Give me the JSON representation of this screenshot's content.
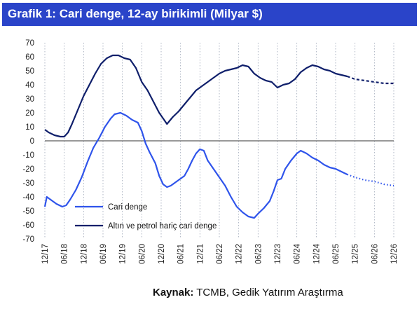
{
  "header": {
    "title": "Grafik 1: Cari denge, 12-ay birikimli (Milyar $)",
    "background": "#2a44c9"
  },
  "source": {
    "label": "Kaynak:",
    "text": " TCMB, Gedik Yatırım Araştırma"
  },
  "chart_data": {
    "type": "line",
    "title": "Grafik 1: Cari denge, 12-ay birikimli (Milyar $)",
    "xlabel": "",
    "ylabel": "",
    "ylim": [
      -70,
      70
    ],
    "yticks": [
      70,
      60,
      50,
      40,
      30,
      20,
      10,
      0,
      -10,
      -20,
      -30,
      -40,
      -50,
      -60,
      -70
    ],
    "xticks": [
      "12/17",
      "06/18",
      "12/18",
      "06/19",
      "12/19",
      "06/20",
      "12/20",
      "06/21",
      "12/21",
      "06/22",
      "12/22",
      "06/23",
      "12/23",
      "06/24",
      "12/24",
      "06/25",
      "12/25",
      "06/26",
      "12/26"
    ],
    "x_unit": "half-year index (0 = 12/17, 1 = 06/18, ... 18 = 12/26)",
    "grid": "vertical dotted",
    "legend": "bottom-center",
    "series": [
      {
        "name": "Cari denge",
        "color": "#2f54eb",
        "actual": [
          [
            0.0,
            -47
          ],
          [
            0.1,
            -40
          ],
          [
            0.3,
            -42
          ],
          [
            0.6,
            -45
          ],
          [
            0.9,
            -47
          ],
          [
            1.1,
            -46
          ],
          [
            1.3,
            -42
          ],
          [
            1.6,
            -35
          ],
          [
            1.9,
            -26
          ],
          [
            2.2,
            -15
          ],
          [
            2.5,
            -5
          ],
          [
            2.8,
            2
          ],
          [
            3.1,
            10
          ],
          [
            3.4,
            16
          ],
          [
            3.6,
            19
          ],
          [
            3.9,
            20
          ],
          [
            4.2,
            18
          ],
          [
            4.5,
            15
          ],
          [
            4.8,
            13
          ],
          [
            5.0,
            7
          ],
          [
            5.2,
            -2
          ],
          [
            5.4,
            -8
          ],
          [
            5.7,
            -16
          ],
          [
            5.9,
            -25
          ],
          [
            6.1,
            -31
          ],
          [
            6.3,
            -33
          ],
          [
            6.5,
            -32
          ],
          [
            6.8,
            -29
          ],
          [
            7.0,
            -27
          ],
          [
            7.2,
            -25
          ],
          [
            7.4,
            -20
          ],
          [
            7.6,
            -14
          ],
          [
            7.8,
            -9
          ],
          [
            8.0,
            -6
          ],
          [
            8.2,
            -7
          ],
          [
            8.4,
            -14
          ],
          [
            8.7,
            -20
          ],
          [
            9.0,
            -26
          ],
          [
            9.3,
            -32
          ],
          [
            9.6,
            -40
          ],
          [
            9.9,
            -47
          ],
          [
            10.2,
            -51
          ],
          [
            10.5,
            -54
          ],
          [
            10.8,
            -55
          ],
          [
            11.0,
            -52
          ],
          [
            11.3,
            -48
          ],
          [
            11.6,
            -43
          ],
          [
            11.8,
            -36
          ],
          [
            12.0,
            -28
          ],
          [
            12.2,
            -27
          ],
          [
            12.4,
            -20
          ],
          [
            12.7,
            -14
          ],
          [
            13.0,
            -9
          ],
          [
            13.2,
            -7
          ],
          [
            13.5,
            -9
          ],
          [
            13.8,
            -12
          ],
          [
            14.1,
            -14
          ],
          [
            14.4,
            -17
          ],
          [
            14.7,
            -19
          ],
          [
            15.0,
            -20
          ],
          [
            15.3,
            -22
          ],
          [
            15.6,
            -24
          ]
        ],
        "forecast": [
          [
            15.6,
            -24
          ],
          [
            16.0,
            -26
          ],
          [
            16.5,
            -28
          ],
          [
            17.0,
            -29
          ],
          [
            17.5,
            -31
          ],
          [
            18.0,
            -32
          ]
        ]
      },
      {
        "name": "Altın ve petrol hariç cari denge",
        "color": "#0f1f6b",
        "actual": [
          [
            0.0,
            8
          ],
          [
            0.2,
            6
          ],
          [
            0.5,
            4
          ],
          [
            0.8,
            3
          ],
          [
            1.0,
            3
          ],
          [
            1.2,
            6
          ],
          [
            1.4,
            12
          ],
          [
            1.7,
            22
          ],
          [
            2.0,
            32
          ],
          [
            2.3,
            40
          ],
          [
            2.6,
            48
          ],
          [
            2.9,
            55
          ],
          [
            3.2,
            59
          ],
          [
            3.5,
            61
          ],
          [
            3.8,
            61
          ],
          [
            4.1,
            59
          ],
          [
            4.4,
            58
          ],
          [
            4.7,
            52
          ],
          [
            5.0,
            42
          ],
          [
            5.3,
            36
          ],
          [
            5.6,
            28
          ],
          [
            5.9,
            20
          ],
          [
            6.1,
            16
          ],
          [
            6.3,
            12
          ],
          [
            6.6,
            17
          ],
          [
            6.9,
            21
          ],
          [
            7.2,
            26
          ],
          [
            7.5,
            31
          ],
          [
            7.8,
            36
          ],
          [
            8.1,
            39
          ],
          [
            8.4,
            42
          ],
          [
            8.7,
            45
          ],
          [
            9.0,
            48
          ],
          [
            9.3,
            50
          ],
          [
            9.6,
            51
          ],
          [
            9.9,
            52
          ],
          [
            10.2,
            54
          ],
          [
            10.5,
            53
          ],
          [
            10.8,
            48
          ],
          [
            11.1,
            45
          ],
          [
            11.4,
            43
          ],
          [
            11.7,
            42
          ],
          [
            12.0,
            38
          ],
          [
            12.3,
            40
          ],
          [
            12.6,
            41
          ],
          [
            12.9,
            44
          ],
          [
            13.2,
            49
          ],
          [
            13.5,
            52
          ],
          [
            13.8,
            54
          ],
          [
            14.1,
            53
          ],
          [
            14.4,
            51
          ],
          [
            14.7,
            50
          ],
          [
            15.0,
            48
          ],
          [
            15.3,
            47
          ],
          [
            15.6,
            46
          ]
        ],
        "forecast": [
          [
            15.6,
            46
          ],
          [
            16.0,
            44
          ],
          [
            16.5,
            43
          ],
          [
            17.0,
            42
          ],
          [
            17.5,
            41
          ],
          [
            18.0,
            41
          ]
        ]
      }
    ]
  }
}
